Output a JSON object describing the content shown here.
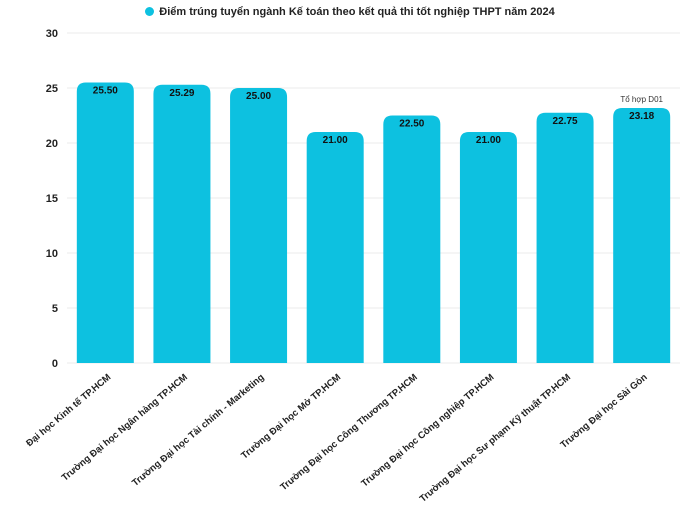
{
  "colors": {
    "bar": "#0DC1E0",
    "grid": "#EBEBEB",
    "text": "#222222"
  },
  "chart_data": {
    "type": "bar",
    "categories": [
      "Đại học Kinh tế TP.HCM",
      "Trường Đại học Ngân hàng TP.HCM",
      "Trường Đại học Tài chính - Marketing",
      "Trường Đại học Mở TP.HCM",
      "Trường Đại học Công Thương TP.HCM",
      "Trường Đại học Công nghiệp TP.HCM",
      "Trường Đại học Sư phạm Kỹ thuật TP.HCM",
      "Trường Đại học Sài Gòn"
    ],
    "series": [
      {
        "name": "Điểm trúng tuyển ngành Kế toán theo kết quả thi tốt nghiệp THPT năm 2024",
        "values": [
          25.5,
          25.29,
          25.0,
          21.0,
          22.5,
          21.0,
          22.75,
          23.18
        ]
      }
    ],
    "data_labels": [
      "25.50",
      "25.29",
      "25.00",
      "21.00",
      "22.50",
      "21.00",
      "22.75",
      "23.18"
    ],
    "annotations": [
      {
        "category_index": 7,
        "text": "Tổ hợp D01"
      }
    ],
    "yticks": [
      "0",
      "5",
      "10",
      "15",
      "20",
      "25",
      "30"
    ],
    "ylim": [
      0,
      30
    ],
    "grid": true,
    "legend_position": "top"
  }
}
